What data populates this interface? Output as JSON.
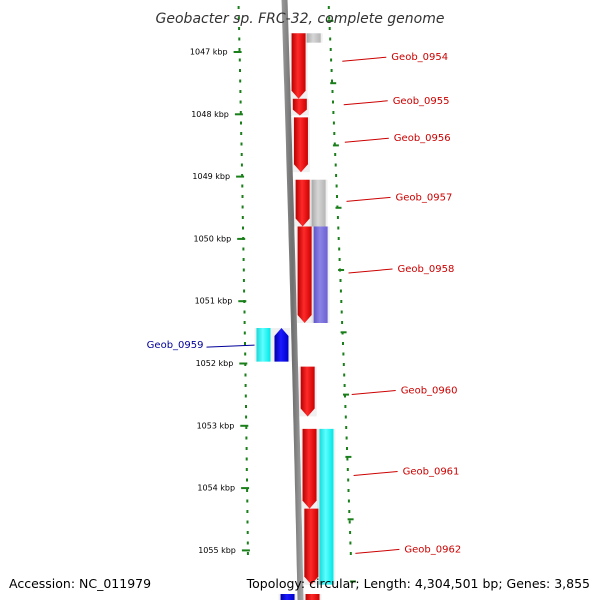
{
  "title": "Geobacter sp. FRC-32, complete genome",
  "footer": {
    "accession": "Accession: NC_011979",
    "topology": "Topology: circular; Length: 4,304,501 bp; Genes: 3,855"
  },
  "colors": {
    "backbone": "#808080",
    "ruler": "#1a7f1a",
    "label_forward": "#cc0000",
    "label_reverse": "#000099",
    "gene_red": "#ff0000",
    "gene_blue": "#0000ff",
    "gene_cyan": "#00ffff",
    "gene_gray": "#bdbdbd",
    "gene_slate": "#7b70dd"
  },
  "ruler": {
    "unit": "kbp",
    "ticks": [
      {
        "kbp": 1047,
        "label": "1047 kbp"
      },
      {
        "kbp": 1048,
        "label": "1048 kbp"
      },
      {
        "kbp": 1049,
        "label": "1049 kbp"
      },
      {
        "kbp": 1050,
        "label": "1050 kbp"
      },
      {
        "kbp": 1051,
        "label": "1051 kbp"
      },
      {
        "kbp": 1052,
        "label": "1052 kbp"
      },
      {
        "kbp": 1053,
        "label": "1053 kbp"
      },
      {
        "kbp": 1054,
        "label": "1054 kbp"
      },
      {
        "kbp": 1055,
        "label": "1055 kbp"
      }
    ]
  },
  "genes": [
    {
      "name": "Geob_0954",
      "lane": "fwd1",
      "color": "red",
      "start_kbp": 1046.7,
      "end_kbp": 1047.75,
      "label_kbp": 1047.1,
      "strand": "+"
    },
    {
      "name": "Geob_0955",
      "lane": "fwd1",
      "color": "red",
      "start_kbp": 1047.75,
      "end_kbp": 1048.02,
      "label_kbp": 1047.8,
      "strand": "+"
    },
    {
      "name": "Geob_0956",
      "lane": "fwd1",
      "color": "red",
      "start_kbp": 1048.05,
      "end_kbp": 1048.93,
      "label_kbp": 1048.4,
      "strand": "+"
    },
    {
      "name": "Geob_0957",
      "lane": "fwd1",
      "color": "red",
      "start_kbp": 1049.05,
      "end_kbp": 1049.8,
      "label_kbp": 1049.35,
      "strand": "+"
    },
    {
      "name": "Geob_0958",
      "lane": "fwd1",
      "color": "red",
      "start_kbp": 1049.8,
      "end_kbp": 1051.35,
      "label_kbp": 1050.5,
      "strand": "+"
    },
    {
      "name": "Geob_0960",
      "lane": "fwd1",
      "color": "red",
      "start_kbp": 1052.05,
      "end_kbp": 1052.85,
      "label_kbp": 1052.45,
      "strand": "+"
    },
    {
      "name": "Geob_0961",
      "lane": "fwd1",
      "color": "red",
      "start_kbp": 1053.05,
      "end_kbp": 1054.33,
      "label_kbp": 1053.75,
      "strand": "+"
    },
    {
      "name": "Geob_0962",
      "lane": "fwd1",
      "color": "red",
      "start_kbp": 1054.33,
      "end_kbp": 1055.55,
      "label_kbp": 1055.0,
      "strand": "+"
    },
    {
      "name": "Geob_0959",
      "lane": "rev1",
      "color": "blue",
      "start_kbp": 1051.43,
      "end_kbp": 1051.97,
      "label_kbp": 1051.72,
      "strand": "-"
    }
  ],
  "features": [
    {
      "lane": "fwd2",
      "color": "gray",
      "start_kbp": 1046.7,
      "end_kbp": 1046.85
    },
    {
      "lane": "fwd2",
      "color": "gray",
      "start_kbp": 1049.05,
      "end_kbp": 1049.8
    },
    {
      "lane": "fwd2",
      "color": "slate",
      "start_kbp": 1049.8,
      "end_kbp": 1051.35
    },
    {
      "lane": "fwd2",
      "color": "cyan",
      "start_kbp": 1053.05,
      "end_kbp": 1055.55
    },
    {
      "lane": "rev2",
      "color": "cyan",
      "start_kbp": 1051.43,
      "end_kbp": 1051.97
    },
    {
      "lane": "fwd1",
      "color": "red",
      "start_kbp": 1055.7,
      "end_kbp": 1055.95
    },
    {
      "lane": "rev1",
      "color": "blue",
      "start_kbp": 1055.7,
      "end_kbp": 1055.95
    }
  ]
}
